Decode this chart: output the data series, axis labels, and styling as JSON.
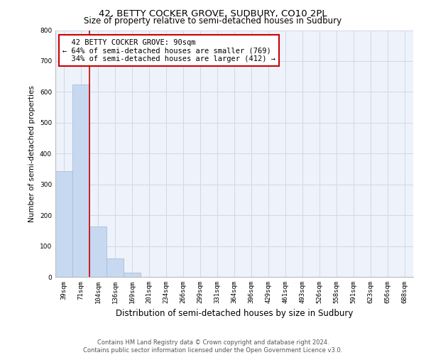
{
  "title": "42, BETTY COCKER GROVE, SUDBURY, CO10 2PL",
  "subtitle": "Size of property relative to semi-detached houses in Sudbury",
  "xlabel": "Distribution of semi-detached houses by size in Sudbury",
  "ylabel": "Number of semi-detached properties",
  "categories": [
    "39sqm",
    "71sqm",
    "104sqm",
    "136sqm",
    "169sqm",
    "201sqm",
    "234sqm",
    "266sqm",
    "299sqm",
    "331sqm",
    "364sqm",
    "396sqm",
    "429sqm",
    "461sqm",
    "493sqm",
    "526sqm",
    "558sqm",
    "591sqm",
    "623sqm",
    "656sqm",
    "688sqm"
  ],
  "values": [
    343,
    623,
    163,
    59,
    13,
    0,
    0,
    0,
    0,
    0,
    0,
    0,
    0,
    0,
    0,
    0,
    0,
    0,
    0,
    0,
    0
  ],
  "bar_color": "#c6d9f0",
  "bar_edge_color": "#a0b8d8",
  "marker_label": "42 BETTY COCKER GROVE: 90sqm",
  "smaller_pct": "64%",
  "smaller_count": 769,
  "larger_pct": "34%",
  "larger_count": 412,
  "annotation_box_edge_color": "#cc0000",
  "marker_line_color": "#cc0000",
  "ylim": [
    0,
    800
  ],
  "yticks": [
    0,
    100,
    200,
    300,
    400,
    500,
    600,
    700,
    800
  ],
  "grid_color": "#d0d8e8",
  "background_color": "#eef2fa",
  "footer_line1": "Contains HM Land Registry data © Crown copyright and database right 2024.",
  "footer_line2": "Contains public sector information licensed under the Open Government Licence v3.0.",
  "title_fontsize": 9.5,
  "subtitle_fontsize": 8.5,
  "xlabel_fontsize": 8.5,
  "ylabel_fontsize": 7.5,
  "tick_fontsize": 6.5,
  "annotation_fontsize": 7.5,
  "footer_fontsize": 6.0
}
